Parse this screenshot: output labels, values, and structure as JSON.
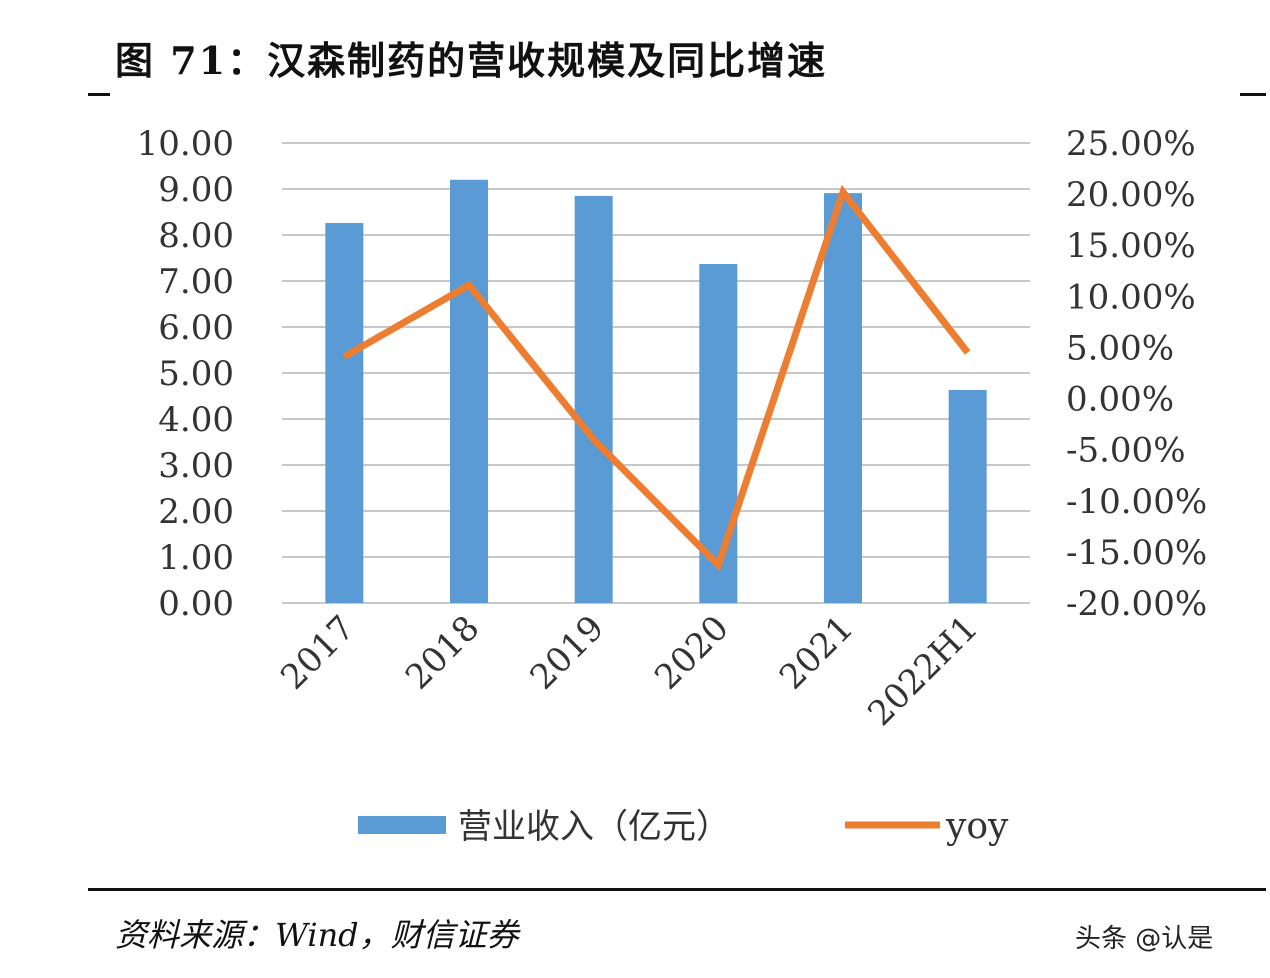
{
  "title": "图 71：汉森制药的营收规模及同比增速",
  "source": "资料来源：Wind，财信证券",
  "watermark": "头条 @认是",
  "chart_data": {
    "type": "bar+line",
    "categories": [
      "2017",
      "2018",
      "2019",
      "2020",
      "2021",
      "2022H1"
    ],
    "series": [
      {
        "name": "营业收入（亿元）",
        "type": "bar",
        "axis": "left",
        "color": "#5b9bd5",
        "values": [
          8.26,
          9.2,
          8.85,
          7.37,
          8.91,
          4.63
        ]
      },
      {
        "name": "yoy",
        "type": "line",
        "axis": "right",
        "color": "#ed7d31",
        "values": [
          4.1,
          11.1,
          -4.0,
          -16.3,
          20.2,
          4.5
        ]
      }
    ],
    "ylim_left": [
      0,
      10
    ],
    "yticks_left": [
      "0.00",
      "1.00",
      "2.00",
      "3.00",
      "4.00",
      "5.00",
      "6.00",
      "7.00",
      "8.00",
      "9.00",
      "10.00"
    ],
    "ylim_right": [
      -20,
      25
    ],
    "yticks_right": [
      "-20.00%",
      "-15.00%",
      "-10.00%",
      "-5.00%",
      "0.00%",
      "5.00%",
      "10.00%",
      "15.00%",
      "20.00%",
      "25.00%"
    ],
    "grid": true,
    "legend": "bottom"
  }
}
